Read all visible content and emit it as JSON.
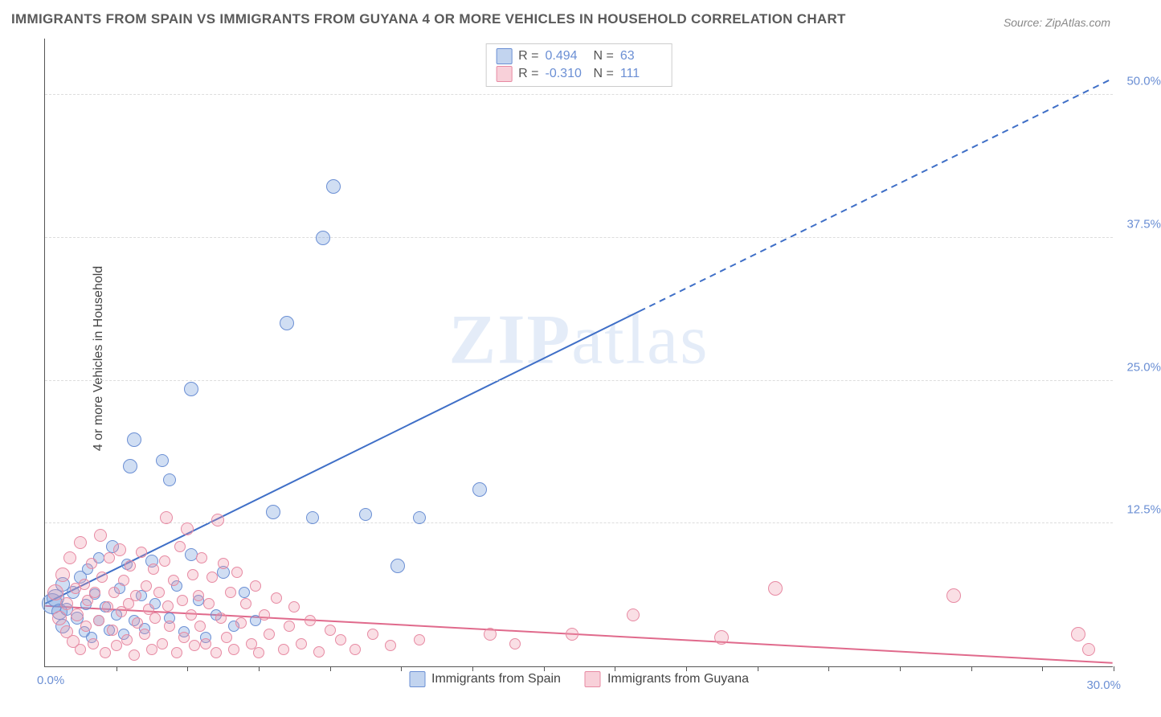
{
  "title": "IMMIGRANTS FROM SPAIN VS IMMIGRANTS FROM GUYANA 4 OR MORE VEHICLES IN HOUSEHOLD CORRELATION CHART",
  "source": "Source: ZipAtlas.com",
  "ylabel": "4 or more Vehicles in Household",
  "watermark": "ZIPatlas",
  "chart": {
    "type": "scatter",
    "xlim": [
      0,
      30
    ],
    "ylim": [
      0,
      55
    ],
    "x_origin_label": "0.0%",
    "x_max_label": "30.0%",
    "yticks": [
      {
        "v": 12.5,
        "label": "12.5%"
      },
      {
        "v": 25.0,
        "label": "25.0%"
      },
      {
        "v": 37.5,
        "label": "37.5%"
      },
      {
        "v": 50.0,
        "label": "50.0%"
      }
    ],
    "xticks_minor": [
      2,
      4,
      6,
      8,
      10,
      12,
      14,
      16,
      18,
      20,
      22,
      24,
      26,
      28,
      30
    ],
    "background_color": "#ffffff",
    "grid_color": "#dddddd",
    "marker_radius_range": [
      5,
      12
    ],
    "series": [
      {
        "name": "Immigrants from Spain",
        "color_fill": "rgba(120,160,220,0.35)",
        "color_stroke": "#6b8fd4",
        "R": "0.494",
        "N": "63",
        "trend": {
          "x1": 0,
          "y1": 5.5,
          "x2": 30,
          "y2": 51.5,
          "solid_until_x": 16.7,
          "stroke": "#3f6fc7",
          "width": 2
        },
        "points": [
          {
            "x": 0.2,
            "y": 5.5,
            "r": 12
          },
          {
            "x": 0.3,
            "y": 6.0,
            "r": 10
          },
          {
            "x": 0.4,
            "y": 4.8,
            "r": 9
          },
          {
            "x": 0.5,
            "y": 7.2,
            "r": 8
          },
          {
            "x": 0.5,
            "y": 3.5,
            "r": 8
          },
          {
            "x": 0.6,
            "y": 5.0,
            "r": 7
          },
          {
            "x": 0.8,
            "y": 6.5,
            "r": 7
          },
          {
            "x": 0.9,
            "y": 4.2,
            "r": 7
          },
          {
            "x": 1.0,
            "y": 7.8,
            "r": 7
          },
          {
            "x": 1.1,
            "y": 3.0,
            "r": 6
          },
          {
            "x": 1.15,
            "y": 5.4,
            "r": 6
          },
          {
            "x": 1.2,
            "y": 8.5,
            "r": 6
          },
          {
            "x": 1.3,
            "y": 2.5,
            "r": 6
          },
          {
            "x": 1.4,
            "y": 6.3,
            "r": 6
          },
          {
            "x": 1.5,
            "y": 4.0,
            "r": 6
          },
          {
            "x": 1.5,
            "y": 9.5,
            "r": 6
          },
          {
            "x": 1.7,
            "y": 5.2,
            "r": 6
          },
          {
            "x": 1.8,
            "y": 3.2,
            "r": 6
          },
          {
            "x": 1.9,
            "y": 10.5,
            "r": 7
          },
          {
            "x": 2.0,
            "y": 4.5,
            "r": 6
          },
          {
            "x": 2.1,
            "y": 6.8,
            "r": 6
          },
          {
            "x": 2.2,
            "y": 2.8,
            "r": 6
          },
          {
            "x": 2.3,
            "y": 8.9,
            "r": 6
          },
          {
            "x": 2.4,
            "y": 17.5,
            "r": 8
          },
          {
            "x": 2.5,
            "y": 4.0,
            "r": 6
          },
          {
            "x": 2.5,
            "y": 19.8,
            "r": 8
          },
          {
            "x": 2.7,
            "y": 6.2,
            "r": 6
          },
          {
            "x": 2.8,
            "y": 3.3,
            "r": 6
          },
          {
            "x": 3.0,
            "y": 9.2,
            "r": 7
          },
          {
            "x": 3.1,
            "y": 5.5,
            "r": 6
          },
          {
            "x": 3.3,
            "y": 18.0,
            "r": 7
          },
          {
            "x": 3.5,
            "y": 4.2,
            "r": 6
          },
          {
            "x": 3.5,
            "y": 16.3,
            "r": 7
          },
          {
            "x": 3.7,
            "y": 7.0,
            "r": 6
          },
          {
            "x": 3.9,
            "y": 3.0,
            "r": 6
          },
          {
            "x": 4.1,
            "y": 9.8,
            "r": 7
          },
          {
            "x": 4.1,
            "y": 24.3,
            "r": 8
          },
          {
            "x": 4.3,
            "y": 5.8,
            "r": 6
          },
          {
            "x": 4.5,
            "y": 2.5,
            "r": 6
          },
          {
            "x": 4.8,
            "y": 4.5,
            "r": 6
          },
          {
            "x": 5.0,
            "y": 8.2,
            "r": 7
          },
          {
            "x": 5.3,
            "y": 3.5,
            "r": 6
          },
          {
            "x": 5.6,
            "y": 6.5,
            "r": 6
          },
          {
            "x": 5.9,
            "y": 4.0,
            "r": 6
          },
          {
            "x": 6.4,
            "y": 13.5,
            "r": 8
          },
          {
            "x": 6.8,
            "y": 30.0,
            "r": 8
          },
          {
            "x": 7.5,
            "y": 13.0,
            "r": 7
          },
          {
            "x": 7.8,
            "y": 37.5,
            "r": 8
          },
          {
            "x": 8.1,
            "y": 42.0,
            "r": 8
          },
          {
            "x": 9.0,
            "y": 13.3,
            "r": 7
          },
          {
            "x": 9.9,
            "y": 8.8,
            "r": 8
          },
          {
            "x": 10.5,
            "y": 13.0,
            "r": 7
          },
          {
            "x": 12.2,
            "y": 15.5,
            "r": 8
          }
        ]
      },
      {
        "name": "Immigrants from Guyana",
        "color_fill": "rgba(240,150,170,0.30)",
        "color_stroke": "#e78aa3",
        "R": "-0.310",
        "N": "111",
        "trend": {
          "x1": 0,
          "y1": 5.3,
          "x2": 30,
          "y2": 0.3,
          "solid_until_x": 30,
          "stroke": "#e06a8c",
          "width": 2
        },
        "points": [
          {
            "x": 0.3,
            "y": 6.5,
            "r": 9
          },
          {
            "x": 0.4,
            "y": 4.2,
            "r": 8
          },
          {
            "x": 0.5,
            "y": 8.0,
            "r": 8
          },
          {
            "x": 0.6,
            "y": 3.0,
            "r": 7
          },
          {
            "x": 0.6,
            "y": 5.5,
            "r": 7
          },
          {
            "x": 0.7,
            "y": 9.5,
            "r": 7
          },
          {
            "x": 0.8,
            "y": 2.2,
            "r": 7
          },
          {
            "x": 0.85,
            "y": 6.8,
            "r": 6
          },
          {
            "x": 0.9,
            "y": 4.5,
            "r": 7
          },
          {
            "x": 1.0,
            "y": 10.8,
            "r": 7
          },
          {
            "x": 1.0,
            "y": 1.5,
            "r": 6
          },
          {
            "x": 1.1,
            "y": 7.2,
            "r": 6
          },
          {
            "x": 1.15,
            "y": 3.5,
            "r": 6
          },
          {
            "x": 1.2,
            "y": 5.8,
            "r": 6
          },
          {
            "x": 1.3,
            "y": 9.0,
            "r": 6
          },
          {
            "x": 1.35,
            "y": 2.0,
            "r": 6
          },
          {
            "x": 1.4,
            "y": 6.5,
            "r": 6
          },
          {
            "x": 1.5,
            "y": 4.0,
            "r": 6
          },
          {
            "x": 1.55,
            "y": 11.5,
            "r": 7
          },
          {
            "x": 1.6,
            "y": 7.8,
            "r": 6
          },
          {
            "x": 1.7,
            "y": 1.2,
            "r": 6
          },
          {
            "x": 1.75,
            "y": 5.2,
            "r": 6
          },
          {
            "x": 1.8,
            "y": 9.5,
            "r": 6
          },
          {
            "x": 1.9,
            "y": 3.2,
            "r": 6
          },
          {
            "x": 1.95,
            "y": 6.5,
            "r": 6
          },
          {
            "x": 2.0,
            "y": 1.8,
            "r": 6
          },
          {
            "x": 2.1,
            "y": 10.2,
            "r": 7
          },
          {
            "x": 2.15,
            "y": 4.8,
            "r": 6
          },
          {
            "x": 2.2,
            "y": 7.5,
            "r": 6
          },
          {
            "x": 2.3,
            "y": 2.3,
            "r": 6
          },
          {
            "x": 2.35,
            "y": 5.5,
            "r": 6
          },
          {
            "x": 2.4,
            "y": 8.8,
            "r": 6
          },
          {
            "x": 2.5,
            "y": 1.0,
            "r": 6
          },
          {
            "x": 2.55,
            "y": 6.2,
            "r": 6
          },
          {
            "x": 2.6,
            "y": 3.8,
            "r": 6
          },
          {
            "x": 2.7,
            "y": 10.0,
            "r": 6
          },
          {
            "x": 2.8,
            "y": 2.8,
            "r": 6
          },
          {
            "x": 2.85,
            "y": 7.0,
            "r": 6
          },
          {
            "x": 2.9,
            "y": 5.0,
            "r": 6
          },
          {
            "x": 3.0,
            "y": 1.5,
            "r": 6
          },
          {
            "x": 3.05,
            "y": 8.5,
            "r": 6
          },
          {
            "x": 3.1,
            "y": 4.2,
            "r": 6
          },
          {
            "x": 3.2,
            "y": 6.5,
            "r": 6
          },
          {
            "x": 3.3,
            "y": 2.0,
            "r": 6
          },
          {
            "x": 3.35,
            "y": 9.2,
            "r": 6
          },
          {
            "x": 3.4,
            "y": 13.0,
            "r": 7
          },
          {
            "x": 3.45,
            "y": 5.3,
            "r": 6
          },
          {
            "x": 3.5,
            "y": 3.5,
            "r": 6
          },
          {
            "x": 3.6,
            "y": 7.5,
            "r": 6
          },
          {
            "x": 3.7,
            "y": 1.2,
            "r": 6
          },
          {
            "x": 3.8,
            "y": 10.5,
            "r": 6
          },
          {
            "x": 3.85,
            "y": 5.8,
            "r": 6
          },
          {
            "x": 3.9,
            "y": 2.5,
            "r": 6
          },
          {
            "x": 4.0,
            "y": 12.0,
            "r": 7
          },
          {
            "x": 4.1,
            "y": 4.5,
            "r": 6
          },
          {
            "x": 4.15,
            "y": 8.0,
            "r": 6
          },
          {
            "x": 4.2,
            "y": 1.8,
            "r": 6
          },
          {
            "x": 4.3,
            "y": 6.2,
            "r": 6
          },
          {
            "x": 4.35,
            "y": 3.5,
            "r": 6
          },
          {
            "x": 4.4,
            "y": 9.5,
            "r": 6
          },
          {
            "x": 4.5,
            "y": 2.0,
            "r": 6
          },
          {
            "x": 4.6,
            "y": 5.5,
            "r": 6
          },
          {
            "x": 4.7,
            "y": 7.8,
            "r": 6
          },
          {
            "x": 4.8,
            "y": 1.2,
            "r": 6
          },
          {
            "x": 4.85,
            "y": 12.8,
            "r": 7
          },
          {
            "x": 4.95,
            "y": 4.2,
            "r": 6
          },
          {
            "x": 5.0,
            "y": 9.0,
            "r": 6
          },
          {
            "x": 5.1,
            "y": 2.5,
            "r": 6
          },
          {
            "x": 5.2,
            "y": 6.5,
            "r": 6
          },
          {
            "x": 5.3,
            "y": 1.5,
            "r": 6
          },
          {
            "x": 5.4,
            "y": 8.2,
            "r": 6
          },
          {
            "x": 5.5,
            "y": 3.8,
            "r": 6
          },
          {
            "x": 5.65,
            "y": 5.5,
            "r": 6
          },
          {
            "x": 5.8,
            "y": 2.0,
            "r": 6
          },
          {
            "x": 5.9,
            "y": 7.0,
            "r": 6
          },
          {
            "x": 6.0,
            "y": 1.2,
            "r": 6
          },
          {
            "x": 6.15,
            "y": 4.5,
            "r": 6
          },
          {
            "x": 6.3,
            "y": 2.8,
            "r": 6
          },
          {
            "x": 6.5,
            "y": 6.0,
            "r": 6
          },
          {
            "x": 6.7,
            "y": 1.5,
            "r": 6
          },
          {
            "x": 6.85,
            "y": 3.5,
            "r": 6
          },
          {
            "x": 7.0,
            "y": 5.2,
            "r": 6
          },
          {
            "x": 7.2,
            "y": 2.0,
            "r": 6
          },
          {
            "x": 7.45,
            "y": 4.0,
            "r": 6
          },
          {
            "x": 7.7,
            "y": 1.3,
            "r": 6
          },
          {
            "x": 8.0,
            "y": 3.2,
            "r": 6
          },
          {
            "x": 8.3,
            "y": 2.3,
            "r": 6
          },
          {
            "x": 8.7,
            "y": 1.5,
            "r": 6
          },
          {
            "x": 9.2,
            "y": 2.8,
            "r": 6
          },
          {
            "x": 9.7,
            "y": 1.8,
            "r": 6
          },
          {
            "x": 10.5,
            "y": 2.3,
            "r": 6
          },
          {
            "x": 12.5,
            "y": 2.8,
            "r": 7
          },
          {
            "x": 13.2,
            "y": 2.0,
            "r": 6
          },
          {
            "x": 14.8,
            "y": 2.8,
            "r": 7
          },
          {
            "x": 16.5,
            "y": 4.5,
            "r": 7
          },
          {
            "x": 19.0,
            "y": 2.5,
            "r": 8
          },
          {
            "x": 20.5,
            "y": 6.8,
            "r": 8
          },
          {
            "x": 25.5,
            "y": 6.2,
            "r": 8
          },
          {
            "x": 29.0,
            "y": 2.8,
            "r": 8
          },
          {
            "x": 29.3,
            "y": 1.5,
            "r": 7
          }
        ]
      }
    ]
  },
  "legend_top": {
    "rows": [
      {
        "swatch": "blue",
        "r_label": "R =",
        "r_val": "0.494",
        "n_label": "N =",
        "n_val": "63"
      },
      {
        "swatch": "pink",
        "r_label": "R =",
        "r_val": "-0.310",
        "n_label": "N =",
        "n_val": "111"
      }
    ]
  },
  "legend_bottom": {
    "items": [
      {
        "swatch": "blue",
        "label": "Immigrants from Spain"
      },
      {
        "swatch": "pink",
        "label": "Immigrants from Guyana"
      }
    ]
  }
}
